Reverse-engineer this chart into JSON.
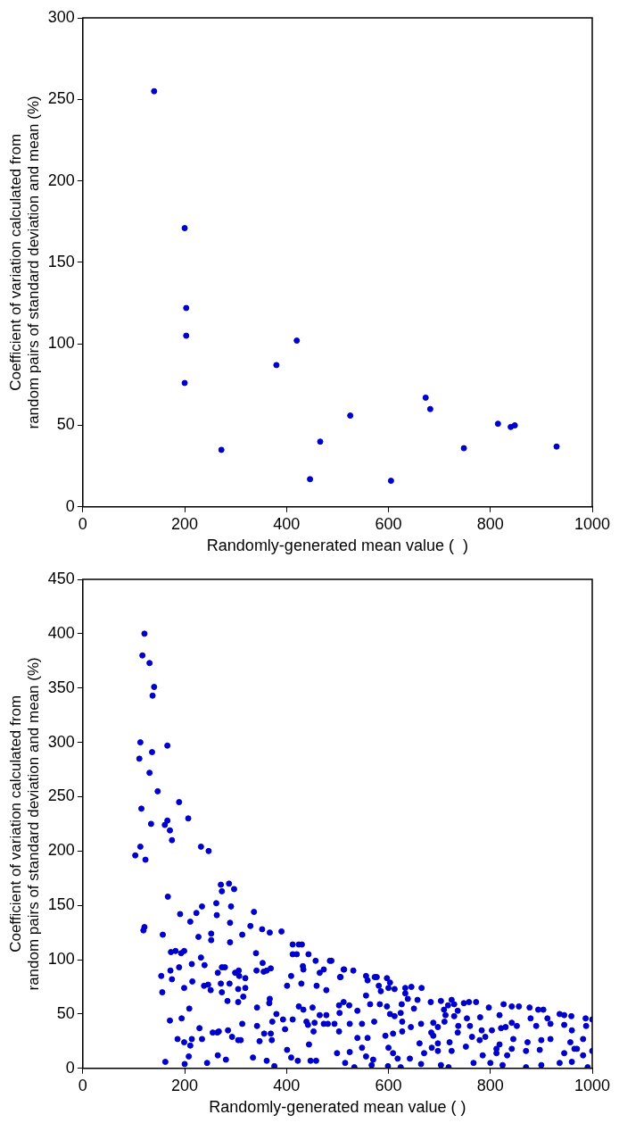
{
  "chart_data": [
    {
      "type": "scatter",
      "xlabel": "Randomly-generated mean value (  )",
      "ylabel": "Coefficient of variation calculated from random pairs of standard deviation and mean (%)",
      "xlim": [
        0,
        1000
      ],
      "xticks": [
        0,
        200,
        400,
        600,
        800,
        1000
      ],
      "ylim": [
        0,
        300
      ],
      "yticks": [
        0,
        50,
        100,
        150,
        200,
        250,
        300
      ],
      "marker": "circle",
      "series": [
        {
          "color": "#0000cc",
          "x": [
            140,
            200,
            203,
            203,
            200,
            272,
            380,
            420,
            446,
            466,
            525,
            605,
            673,
            682,
            748,
            815,
            840,
            848,
            930
          ],
          "values": [
            255,
            171,
            122,
            105,
            76,
            35,
            87,
            102,
            17,
            40,
            56,
            16,
            67,
            60,
            36,
            51,
            49,
            50,
            37
          ]
        }
      ]
    },
    {
      "type": "scatter",
      "xlabel": "Randomly-generated mean value ( )",
      "ylabel": "Coefficient of variation calculated from random pairs of standard deviation and mean (%)",
      "xlim": [
        0,
        1000
      ],
      "xticks": [
        0,
        200,
        400,
        600,
        800,
        1000
      ],
      "ylim": [
        0,
        450
      ],
      "yticks": [
        0,
        50,
        100,
        150,
        200,
        250,
        300,
        350,
        400,
        450
      ],
      "marker": "circle",
      "series": [
        {
          "color": "#0000cc",
          "x": [
            121,
            117,
            131,
            140,
            137,
            113,
            166,
            111,
            136,
            131,
            147,
            189,
            115,
            207,
            166,
            161,
            171,
            175,
            134,
            113,
            103,
            123,
            232,
            247,
            271,
            287,
            273,
            297,
            167,
            262,
            291,
            234,
            191,
            223,
            263,
            336,
            211,
            289,
            329,
            121,
            119,
            157,
            313,
            352,
            252,
            227,
            252,
            289,
            367,
            390,
            173,
            182,
            199,
            193,
            340,
            232,
            214,
            239,
            189,
            154,
            172,
            175,
            156,
            199,
            215,
            238,
            246,
            251,
            265,
            273,
            279,
            271,
            273,
            288,
            299,
            306,
            307,
            319,
            305,
            284,
            305,
            315,
            319,
            341,
            353,
            355,
            361,
            369,
            209,
            171,
            194,
            186,
            199,
            214,
            211,
            229,
            234,
            255,
            264,
            267,
            285,
            293,
            305,
            310,
            313,
            342,
            342,
            347,
            356,
            367,
            366,
            369,
            371,
            380,
            372,
            162,
            200,
            208,
            244,
            265,
            281,
            334,
            361,
            376,
            393,
            397,
            401,
            409,
            412,
            422,
            424,
            433,
            439,
            442,
            444,
            447,
            451,
            453,
            455,
            458,
            401,
            409,
            412,
            412,
            424,
            420,
            430,
            433,
            429,
            443,
            432,
            457,
            459,
            465,
            473,
            478,
            485,
            465,
            478,
            473,
            481,
            504,
            513,
            505,
            488,
            512,
            531,
            506,
            556,
            573,
            577,
            559,
            581,
            597,
            603,
            600,
            585,
            612,
            633,
            645,
            665,
            633,
            512,
            523,
            503,
            539,
            556,
            564,
            583,
            597,
            603,
            612,
            624,
            626,
            638,
            650,
            657,
            683,
            703,
            709,
            717,
            724,
            729,
            736,
            748,
            758,
            772,
            712,
            710,
            729,
            754,
            780,
            797,
            818,
            826,
            842,
            856,
            877,
            894,
            904,
            879,
            912,
            936,
            945,
            959,
            987,
            1000,
            494,
            524,
            548,
            572,
            627,
            644,
            664,
            688,
            697,
            737,
            760,
            783,
            803,
            821,
            830,
            842,
            852,
            890,
            918,
            945,
            960,
            988,
            503,
            539,
            559,
            594,
            609,
            627,
            661,
            684,
            688,
            697,
            720,
            736,
            752,
            764,
            779,
            790,
            812,
            818,
            845,
            873,
            900,
            918,
            957,
            965,
            982,
            1000,
            499,
            524,
            548,
            556,
            570,
            600,
            609,
            618,
            642,
            670,
            685,
            697,
            724,
            785,
            812,
            833,
            842,
            870,
            897,
            945,
            960,
            970,
            982,
            515,
            533,
            567,
            599,
            624,
            664,
            703,
            718,
            767,
            800,
            824,
            870,
            900,
            936,
            991
          ],
          "values": [
            400,
            380,
            373,
            351,
            343,
            300,
            297,
            285,
            291,
            272,
            255,
            245,
            239,
            230,
            228,
            224,
            219,
            210,
            225,
            204,
            196,
            192,
            204,
            200,
            169,
            170,
            163,
            165,
            158,
            152,
            149,
            149,
            142,
            143,
            141,
            144,
            135,
            134,
            131,
            130,
            127,
            123,
            123,
            128,
            124,
            121,
            118,
            116,
            125,
            126,
            107,
            108,
            108,
            106,
            106,
            102,
            96,
            95,
            93,
            85,
            90,
            82,
            70,
            74,
            80,
            76,
            77,
            72,
            88,
            93,
            93,
            78,
            70,
            78,
            88,
            90,
            85,
            83,
            73,
            62,
            61,
            66,
            74,
            90,
            97,
            89,
            90,
            92,
            55,
            44,
            46,
            27,
            24,
            27,
            21,
            37,
            27,
            33,
            33,
            34,
            35,
            29,
            26,
            26,
            41,
            56,
            39,
            25,
            32,
            64,
            60,
            32,
            26,
            50,
            43,
            6,
            4,
            11,
            5,
            12,
            8,
            10,
            7,
            2,
            45,
            36,
            17,
            10,
            45,
            7,
            57,
            54,
            43,
            40,
            22,
            7,
            56,
            34,
            42,
            7,
            76,
            85,
            105,
            114,
            114,
            105,
            114,
            91,
            78,
            105,
            94,
            99,
            76,
            88,
            91,
            72,
            99,
            49,
            49,
            41,
            41,
            51,
            91,
            84,
            99,
            91,
            90,
            84,
            85,
            84,
            84,
            81,
            76,
            83,
            79,
            74,
            71,
            73,
            74,
            75,
            74,
            69,
            61,
            58,
            58,
            53,
            67,
            59,
            59,
            57,
            50,
            48,
            51,
            59,
            64,
            55,
            63,
            61,
            62,
            54,
            58,
            63,
            59,
            53,
            60,
            61,
            61,
            49,
            43,
            48,
            46,
            47,
            56,
            49,
            59,
            57,
            57,
            56,
            54,
            54,
            46,
            46,
            50,
            49,
            48,
            46,
            45,
            41,
            41,
            41,
            43,
            43,
            38,
            41,
            42,
            38,
            39,
            39,
            35,
            35,
            37,
            38,
            42,
            39,
            39,
            41,
            40,
            35,
            39,
            34,
            28,
            28,
            30,
            32,
            34,
            23,
            33,
            30,
            23,
            24,
            33,
            20,
            29,
            26,
            29,
            18,
            22,
            27,
            24,
            26,
            27,
            24,
            18,
            27,
            16,
            14,
            15,
            19,
            11,
            8,
            19,
            14,
            9,
            9,
            14,
            19,
            16,
            16,
            12,
            14,
            12,
            18,
            16,
            17,
            14,
            6,
            18,
            12,
            5,
            1,
            3,
            2,
            1,
            4,
            3,
            1,
            5,
            5,
            3,
            1,
            3,
            5,
            1
          ]
        }
      ]
    }
  ]
}
